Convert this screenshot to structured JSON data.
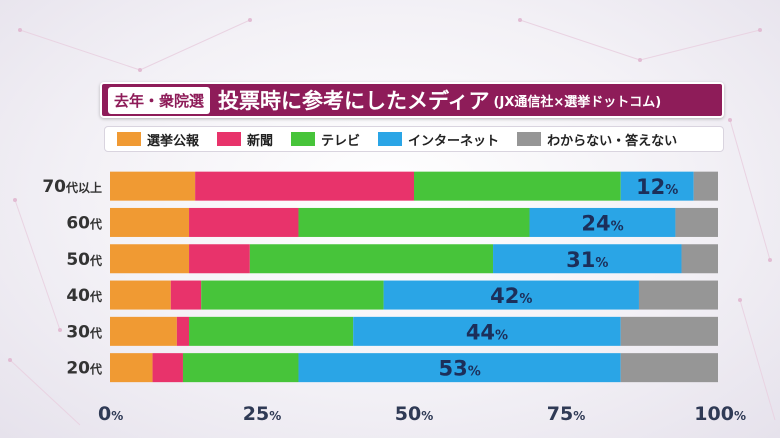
{
  "title": {
    "tag": "去年・衆院選",
    "main": "投票時に参考にしたメディア",
    "sub": "(JX通信社×選挙ドットコム)"
  },
  "colors": {
    "選挙公報": "#f09a33",
    "新聞": "#e8336b",
    "テレビ": "#47c43a",
    "インターネット": "#2aa5e6",
    "わからない・答えない": "#969696",
    "title_bg": "#8e1c59"
  },
  "chart_data": {
    "type": "bar",
    "orientation": "horizontal",
    "stacked": true,
    "title": "投票時に参考にしたメディア",
    "categories": [
      "70代以上",
      "60代",
      "50代",
      "40代",
      "30代",
      "20代"
    ],
    "series": [
      {
        "name": "選挙公報",
        "values": [
          14,
          13,
          13,
          10,
          11,
          7
        ]
      },
      {
        "name": "新聞",
        "values": [
          36,
          18,
          10,
          5,
          2,
          5
        ]
      },
      {
        "name": "テレビ",
        "values": [
          34,
          38,
          40,
          30,
          27,
          19
        ]
      },
      {
        "name": "インターネット",
        "values": [
          12,
          24,
          31,
          42,
          44,
          53
        ]
      },
      {
        "name": "わからない・答えない",
        "values": [
          4,
          7,
          6,
          13,
          16,
          16
        ]
      }
    ],
    "labeled_series": "インターネット",
    "data_labels": [
      {
        "num": "12",
        "unit": "%"
      },
      {
        "num": "24",
        "unit": "%"
      },
      {
        "num": "31",
        "unit": "%"
      },
      {
        "num": "42",
        "unit": "%"
      },
      {
        "num": "44",
        "unit": "%"
      },
      {
        "num": "53",
        "unit": "%"
      }
    ],
    "xlim": [
      0,
      100
    ],
    "xticks": [
      {
        "num": "0",
        "unit": "%"
      },
      {
        "num": "25",
        "unit": "%"
      },
      {
        "num": "50",
        "unit": "%"
      },
      {
        "num": "75",
        "unit": "%"
      },
      {
        "num": "100",
        "unit": "%"
      }
    ],
    "legend_position": "top"
  }
}
